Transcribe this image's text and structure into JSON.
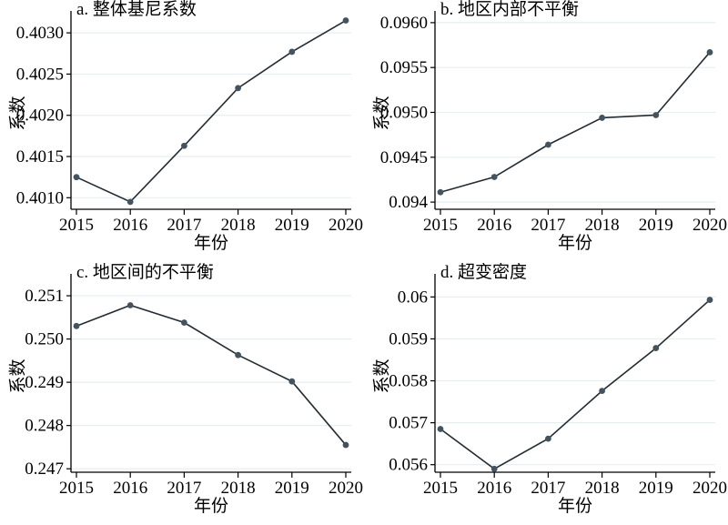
{
  "style": {
    "background": "#ffffff",
    "line_color": "#232c33",
    "marker_color": "#44545f",
    "grid_color": "#e6eef0",
    "axis_color": "#000000",
    "text_color": "#000000"
  },
  "chart_data": [
    {
      "id": "a",
      "type": "line",
      "title": "a. 整体基尼系数",
      "xlabel": "年份",
      "ylabel": "系数",
      "x": [
        "2015",
        "2016",
        "2017",
        "2018",
        "2019",
        "2020"
      ],
      "values": [
        0.40125,
        0.40095,
        0.40163,
        0.40233,
        0.40277,
        0.40315
      ],
      "yticks": [
        0.401,
        0.4015,
        0.402,
        0.4025,
        0.403
      ],
      "ytick_labels": [
        "0.4010",
        "0.4015",
        "0.4020",
        "0.4025",
        "0.4030"
      ],
      "ylim": [
        0.40086,
        0.4032
      ],
      "grid": true,
      "legend": "none"
    },
    {
      "id": "b",
      "type": "line",
      "title": "b. 地区内部不平衡",
      "xlabel": "年份",
      "ylabel": "系数",
      "x": [
        "2015",
        "2016",
        "2017",
        "2018",
        "2019",
        "2020"
      ],
      "values": [
        0.09411,
        0.09428,
        0.09464,
        0.09494,
        0.09497,
        0.09567
      ],
      "yticks": [
        0.094,
        0.0945,
        0.095,
        0.0955,
        0.096
      ],
      "ytick_labels": [
        "0.094",
        "0.0945",
        "0.0950",
        "0.0955",
        "0.0960"
      ],
      "ylim": [
        0.09392,
        0.09607
      ],
      "grid": true,
      "legend": "none"
    },
    {
      "id": "c",
      "type": "line",
      "title": "c. 地区间的不平衡",
      "xlabel": "年份",
      "ylabel": "系数",
      "x": [
        "2015",
        "2016",
        "2017",
        "2018",
        "2019",
        "2020"
      ],
      "values": [
        0.2503,
        0.25078,
        0.25038,
        0.24963,
        0.24902,
        0.24755
      ],
      "yticks": [
        0.247,
        0.248,
        0.249,
        0.25,
        0.251
      ],
      "ytick_labels": [
        "0.247",
        "0.248",
        "0.249",
        "0.250",
        "0.251"
      ],
      "ylim": [
        0.24692,
        0.25138
      ],
      "grid": true,
      "legend": "none"
    },
    {
      "id": "d",
      "type": "line",
      "title": "d. 超变密度",
      "xlabel": "年份",
      "ylabel": "系数",
      "x": [
        "2015",
        "2016",
        "2017",
        "2018",
        "2019",
        "2020"
      ],
      "values": [
        0.05685,
        0.0559,
        0.05662,
        0.05776,
        0.05878,
        0.05993
      ],
      "yticks": [
        0.056,
        0.057,
        0.058,
        0.059,
        0.06
      ],
      "ytick_labels": [
        "0.056",
        "0.057",
        "0.058",
        "0.059",
        "0.06"
      ],
      "ylim": [
        0.05582,
        0.06042
      ],
      "grid": true,
      "legend": "none"
    }
  ]
}
